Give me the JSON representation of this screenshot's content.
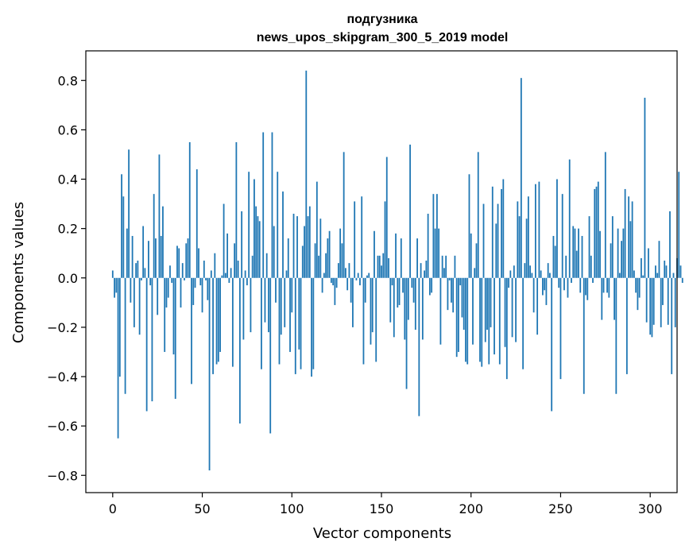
{
  "chart_data": {
    "type": "bar",
    "title_lines": [
      "подгузника",
      "news_upos_skipgram_300_5_2019 model"
    ],
    "xlabel": "Vector components",
    "ylabel": "Components values",
    "xlim": [
      -15,
      315
    ],
    "ylim": [
      -0.87,
      0.92
    ],
    "xticks": [
      0,
      50,
      100,
      150,
      200,
      250,
      300
    ],
    "xtick_labels": [
      "0",
      "50",
      "100",
      "150",
      "200",
      "250",
      "300"
    ],
    "yticks": [
      -0.8,
      -0.6,
      -0.4,
      -0.2,
      0.0,
      0.2,
      0.4,
      0.6,
      0.8
    ],
    "ytick_labels": [
      "−0.8",
      "−0.6",
      "−0.4",
      "−0.2",
      "0.0",
      "0.2",
      "0.4",
      "0.6",
      "0.8"
    ],
    "bar_color": "#1f77b4",
    "grid": false,
    "values": [
      0.03,
      -0.08,
      -0.06,
      -0.65,
      -0.4,
      0.42,
      0.33,
      -0.47,
      0.2,
      0.52,
      -0.1,
      0.17,
      -0.2,
      0.06,
      0.07,
      -0.23,
      -0.01,
      0.21,
      0.04,
      -0.54,
      0.15,
      -0.03,
      -0.5,
      0.34,
      0.16,
      -0.15,
      0.5,
      0.17,
      0.29,
      -0.3,
      -0.12,
      -0.08,
      0.05,
      -0.02,
      -0.31,
      -0.49,
      0.13,
      0.12,
      -0.12,
      0.06,
      -0.01,
      0.14,
      0.16,
      0.55,
      -0.43,
      -0.11,
      -0.04,
      0.44,
      0.12,
      -0.03,
      -0.14,
      0.07,
      -0.01,
      -0.09,
      -0.78,
      0.03,
      -0.39,
      0.1,
      -0.35,
      -0.34,
      -0.3,
      0.01,
      0.3,
      0.02,
      0.18,
      -0.02,
      0.04,
      -0.36,
      0.14,
      0.55,
      0.07,
      -0.59,
      0.27,
      -0.25,
      0.03,
      -0.03,
      0.43,
      -0.22,
      0.09,
      0.4,
      0.29,
      0.25,
      0.23,
      -0.37,
      0.59,
      -0.18,
      0.1,
      -0.22,
      -0.63,
      0.59,
      0.21,
      -0.1,
      0.43,
      -0.35,
      -0.23,
      0.35,
      -0.2,
      0.03,
      0.16,
      -0.3,
      -0.14,
      0.26,
      -0.39,
      0.25,
      -0.29,
      -0.37,
      0.13,
      0.21,
      0.84,
      0.25,
      0.29,
      -0.4,
      -0.37,
      0.14,
      0.39,
      0.09,
      0.24,
      -0.06,
      0.02,
      0.1,
      0.16,
      0.19,
      -0.02,
      -0.03,
      -0.11,
      -0.04,
      0.06,
      0.2,
      0.14,
      0.51,
      0.04,
      -0.05,
      0.06,
      -0.1,
      -0.2,
      0.31,
      -0.01,
      0.02,
      -0.03,
      0.33,
      -0.35,
      -0.1,
      0.01,
      0.02,
      -0.27,
      -0.22,
      0.19,
      -0.34,
      0.09,
      0.09,
      0.05,
      0.1,
      0.31,
      0.49,
      0.08,
      -0.18,
      -0.03,
      -0.24,
      0.18,
      -0.12,
      -0.11,
      0.16,
      -0.06,
      -0.25,
      -0.45,
      -0.17,
      0.54,
      -0.04,
      -0.1,
      -0.21,
      0.16,
      -0.56,
      0.06,
      -0.25,
      0.03,
      0.07,
      0.26,
      -0.07,
      -0.06,
      0.34,
      0.2,
      0.34,
      0.2,
      -0.27,
      0.09,
      0.04,
      0.09,
      -0.13,
      -0.01,
      -0.1,
      -0.14,
      0.09,
      -0.32,
      -0.3,
      -0.03,
      -0.16,
      -0.21,
      -0.34,
      -0.35,
      0.42,
      0.18,
      -0.27,
      0.04,
      0.14,
      0.51,
      -0.34,
      -0.36,
      0.3,
      -0.26,
      -0.21,
      -0.35,
      -0.2,
      0.37,
      -0.31,
      0.22,
      0.3,
      -0.35,
      0.36,
      0.4,
      -0.28,
      -0.41,
      -0.04,
      0.03,
      -0.24,
      0.05,
      -0.26,
      0.31,
      0.25,
      0.81,
      -0.37,
      0.06,
      0.24,
      0.33,
      0.05,
      0.02,
      -0.14,
      0.38,
      -0.23,
      0.39,
      0.03,
      -0.07,
      -0.05,
      -0.11,
      0.06,
      0.02,
      -0.54,
      0.17,
      0.13,
      0.4,
      -0.04,
      -0.41,
      0.34,
      -0.05,
      0.09,
      -0.08,
      0.48,
      -0.02,
      0.21,
      0.2,
      0.11,
      0.2,
      -0.06,
      0.17,
      -0.47,
      -0.07,
      -0.09,
      0.25,
      0.09,
      -0.02,
      0.36,
      0.37,
      0.39,
      0.19,
      -0.17,
      -0.06,
      0.51,
      -0.06,
      -0.08,
      0.14,
      0.25,
      -0.17,
      -0.47,
      0.2,
      0.02,
      0.15,
      0.2,
      0.36,
      -0.39,
      0.33,
      0.23,
      0.31,
      0.03,
      -0.06,
      -0.13,
      -0.08,
      0.08,
      0.01,
      0.73,
      -0.18,
      0.12,
      -0.23,
      -0.24,
      -0.19,
      0.05,
      0.02,
      0.15,
      -0.2,
      -0.11,
      0.07,
      0.05,
      -0.19,
      0.27,
      -0.39,
      0.02,
      -0.2,
      0.08,
      0.43,
      0.05,
      -0.02
    ]
  }
}
